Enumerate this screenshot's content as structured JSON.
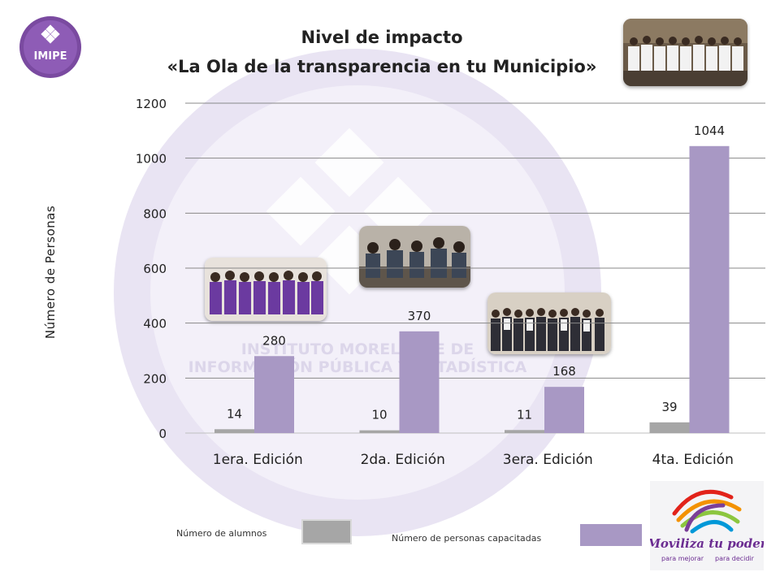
{
  "title_line1": "Nivel de impacto",
  "title_line2": "«La Ola de la transparencia en tu Municipio»",
  "logo_text": "IMIPE",
  "watermark_text": [
    "INSTITUTO MORELENSE DE",
    "INFORMACIÓN PÚBLICA Y ESTADÍSTICA"
  ],
  "brand_text": [
    "Moviliza tu poder",
    "para mejorar",
    "para decidir"
  ],
  "colors": {
    "series_alumnos": "#a6a6a6",
    "series_personas": "#a898c4",
    "watermark": "#ddd6ee"
  },
  "chart_data": {
    "type": "bar",
    "title": "Nivel de impacto «La Ola de la transparencia en tu Municipio»",
    "xlabel": "",
    "ylabel": "Número de Personas",
    "categories": [
      "1era. Edición",
      "2da. Edición",
      "3era. Edición",
      "4ta. Edición"
    ],
    "series": [
      {
        "name": "Número de alumnos",
        "values": [
          14,
          10,
          11,
          39
        ]
      },
      {
        "name": "Número de personas capacitadas",
        "values": [
          280,
          370,
          168,
          1044
        ]
      }
    ],
    "ylim": [
      0,
      1200
    ],
    "yticks": [
      0,
      200,
      400,
      600,
      800,
      1000,
      1200
    ],
    "grid": true,
    "legend_position": "bottom"
  }
}
